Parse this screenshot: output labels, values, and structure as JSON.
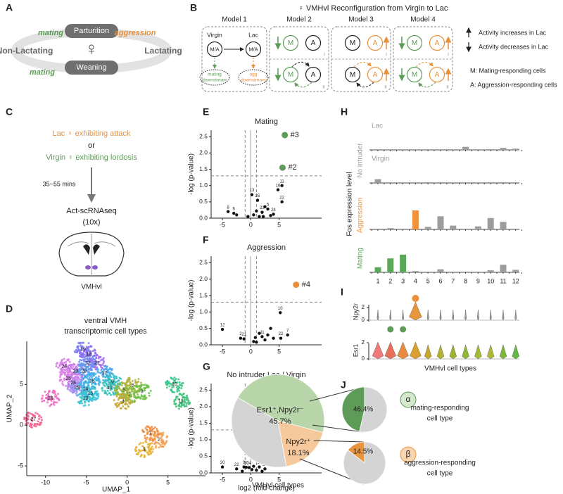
{
  "panel_letters": [
    "A",
    "B",
    "C",
    "D",
    "E",
    "F",
    "G",
    "H",
    "I",
    "J"
  ],
  "panel_a": {
    "top": "Parturition",
    "bottom": "Weaning",
    "left": "Non-Lactating",
    "right": "Lactating",
    "mating_top": "mating",
    "aggression": "aggression",
    "mating_bottom": "mating",
    "symbol": "♀"
  },
  "panel_b": {
    "title": "♀ VMHvl Reconfiguration from Virgin to Lac",
    "models": [
      "Model 1",
      "Model 2",
      "Model 3",
      "Model 4"
    ],
    "virgin": "Virgin",
    "lac": "Lac",
    "ma": "M/A",
    "mating_downstream": [
      "mating",
      "downstream"
    ],
    "agg_downstream": [
      "agg",
      "downstream"
    ],
    "m": "M",
    "a": "A",
    "sub": [
      "I",
      "II"
    ],
    "legend": [
      "Activity increases in Lac",
      "Activity decreases in Lac",
      "M: Mating-responding cells",
      "A: Aggression-responding cells"
    ]
  },
  "panel_c": {
    "line1": "Lac ♀ exhibiting attack",
    "or": "or",
    "line2": "Virgin ♀ exhibiting lordosis",
    "time": "35~55 mins",
    "method": [
      "Act-scRNAseq",
      "(10x)"
    ],
    "region": "VMHvl"
  },
  "panel_d": {
    "title": [
      "ventral VMH",
      "transcriptomic cell types"
    ],
    "xlabel": "UMAP_1",
    "ylabel": "UMAP_2",
    "xlim": [
      -12.3,
      9.6
    ],
    "xticks": [
      -10,
      -5,
      0,
      5
    ],
    "ylim": [
      -6.2,
      10.3
    ],
    "yticks": [
      -5,
      0,
      5
    ],
    "clusters": [
      {
        "label": "19",
        "x": -5.4,
        "y": 9.3,
        "color": "#7b7cf0"
      },
      {
        "label": "18",
        "x": -4.7,
        "y": 8.7,
        "color": "#8d6cf0"
      },
      {
        "label": "21",
        "x": -3.7,
        "y": 7.6,
        "color": "#a46df0"
      },
      {
        "label": "22",
        "x": -4.8,
        "y": 7.6,
        "color": "#6f8ff2"
      },
      {
        "label": "24",
        "x": -7.7,
        "y": 7.2,
        "color": "#d679e8"
      },
      {
        "label": "23",
        "x": -6.3,
        "y": 6.6,
        "color": "#c277ee"
      },
      {
        "label": "20",
        "x": -5.3,
        "y": 6.6,
        "color": "#5e9ef0"
      },
      {
        "label": "25",
        "x": -7.2,
        "y": 5.7,
        "color": "#e07ae0"
      },
      {
        "label": "17",
        "x": -2.8,
        "y": 6.4,
        "color": "#4aa8ea"
      },
      {
        "label": "16",
        "x": -4.3,
        "y": 5.4,
        "color": "#3bb0e6"
      },
      {
        "label": "28",
        "x": -6.6,
        "y": 5.2,
        "color": "#b58af0"
      },
      {
        "label": "29",
        "x": -6.1,
        "y": 4.6,
        "color": "#9c8ef0"
      },
      {
        "label": "9",
        "x": -1.8,
        "y": 5.3,
        "color": "#36bcc8"
      },
      {
        "label": "12",
        "x": -2.1,
        "y": 4.6,
        "color": "#3ac0b8"
      },
      {
        "label": "14",
        "x": -5.1,
        "y": 4.4,
        "color": "#44b4e0"
      },
      {
        "label": "15",
        "x": -4.5,
        "y": 3.9,
        "color": "#40bcd8"
      },
      {
        "label": "13",
        "x": -5.1,
        "y": 3.3,
        "color": "#3cc4d0"
      },
      {
        "label": "26",
        "x": -9.4,
        "y": 3.3,
        "color": "#f06cc4"
      },
      {
        "label": "27",
        "x": -11.5,
        "y": 0.7,
        "color": "#f0608c"
      },
      {
        "label": "5",
        "x": -0.4,
        "y": 4.3,
        "color": "#9cb83a"
      },
      {
        "label": "6",
        "x": 0.7,
        "y": 4.9,
        "color": "#b4b238"
      },
      {
        "label": "7",
        "x": 0.3,
        "y": 3.7,
        "color": "#84bc40"
      },
      {
        "label": "4",
        "x": -0.5,
        "y": 2.9,
        "color": "#c4a834"
      },
      {
        "label": "8",
        "x": 1.8,
        "y": 4.1,
        "color": "#6cc048"
      },
      {
        "label": "10",
        "x": 5.8,
        "y": 5.0,
        "color": "#3cc48a"
      },
      {
        "label": "11",
        "x": 6.6,
        "y": 3.0,
        "color": "#40c07a"
      },
      {
        "label": "1",
        "x": 2.8,
        "y": -1.0,
        "color": "#f08a3c"
      },
      {
        "label": "2",
        "x": 3.9,
        "y": -1.8,
        "color": "#f0a050"
      },
      {
        "label": "3",
        "x": 2.1,
        "y": -3.0,
        "color": "#e6b030"
      }
    ]
  },
  "panel_i": {
    "genes": [
      "Npy2r",
      "Esr1"
    ],
    "yticks": [
      0,
      2
    ],
    "xlabel": "VMHvl cell types"
  },
  "chart_data": [
    {
      "type": "scatter",
      "title": "Mating",
      "ylabel": "-log (p-value)",
      "xlim": [
        -7,
        12.5
      ],
      "xticks": [
        -5,
        0,
        5
      ],
      "ylim": [
        0,
        2.7
      ],
      "yticks": [
        {
          "value": 0,
          "label": "0.0"
        },
        0.5,
        {
          "value": 1,
          "label": "1.0"
        },
        1.5,
        {
          "value": 2,
          "label": "2.0"
        },
        2.5
      ],
      "threshold_y": 1.3,
      "threshold_x": [
        -1,
        1
      ],
      "series": [
        {
          "color": "#111111",
          "x": [
            -4,
            -3,
            -2.5,
            0.2,
            1.2,
            5.5,
            4.8,
            5.5,
            3,
            2,
            4,
            1.5,
            0.5,
            -0.5,
            2.5,
            1,
            3.5,
            2.2
          ],
          "values": [
            0.2,
            0.15,
            0.1,
            0.72,
            0.55,
            1.0,
            0.87,
            0.5,
            0.28,
            0.18,
            0.12,
            0.05,
            0.1,
            0.05,
            0.35,
            0.22,
            0.08,
            0.05
          ],
          "point_labels": [
            "8",
            "6",
            null,
            "13",
            "25",
            "11",
            "16",
            "22",
            "5",
            "23",
            "24",
            null,
            null,
            null,
            null,
            null,
            null,
            null
          ]
        },
        {
          "color": "#5e9b58",
          "x": [
            6,
            5.6
          ],
          "values": [
            2.55,
            1.55
          ],
          "point_labels": [
            "#3",
            "#2"
          ]
        }
      ]
    },
    {
      "type": "scatter",
      "title": "Aggression",
      "ylabel": "-log (p-value)",
      "xlim": [
        -7,
        12.5
      ],
      "xticks": [
        -5,
        0,
        5
      ],
      "ylim": [
        0,
        2.7
      ],
      "yticks": [
        {
          "value": 0,
          "label": "0.0"
        },
        0.5,
        {
          "value": 1,
          "label": "1.0"
        },
        1.5,
        {
          "value": 2,
          "label": "2.0"
        },
        2.5
      ],
      "threshold_y": 1.3,
      "threshold_x": [
        -1,
        1
      ],
      "series": [
        {
          "color": "#111111",
          "x": [
            -5,
            -1.8,
            -1.2,
            5.2,
            6.5,
            5.3,
            1.5,
            2,
            3,
            2.5,
            0.5,
            1,
            3.5,
            4,
            0.8
          ],
          "values": [
            0.47,
            0.2,
            0.18,
            0.98,
            0.3,
            0.2,
            0.35,
            0.25,
            0.3,
            0.15,
            0.1,
            0.08,
            0.5,
            0.2,
            0.22
          ],
          "point_labels": [
            "12",
            "2",
            "21",
            "10",
            "7",
            "22",
            null,
            "11",
            null,
            null,
            null,
            null,
            null,
            null,
            null
          ]
        },
        {
          "color": "#e8913a",
          "x": [
            8
          ],
          "values": [
            1.83
          ],
          "point_labels": [
            "#4"
          ]
        }
      ]
    },
    {
      "type": "scatter",
      "title": "No intruder Lac / Virgin",
      "ylabel": "-log (p-value)",
      "xlabel": "log2 (fold-change)",
      "xlim": [
        -7,
        12.5
      ],
      "xticks": [
        -5,
        0,
        5
      ],
      "ylim": [
        0,
        2.7
      ],
      "yticks": [
        {
          "value": 0,
          "label": "0.0"
        },
        0.5,
        {
          "value": 1,
          "label": "1.0"
        },
        1.5,
        {
          "value": 2,
          "label": "2.0"
        },
        2.5
      ],
      "threshold_y": 1.3,
      "threshold_x": [
        -1,
        1
      ],
      "series": [
        {
          "color": "#111111",
          "x": [
            -5,
            -2.5,
            0.6,
            -1.2,
            -0.8,
            -0.3,
            1.5,
            2.5,
            0.2,
            1,
            -1.5,
            2,
            0.5
          ],
          "values": [
            0.18,
            0.12,
            0.45,
            0.18,
            0.17,
            0.16,
            0.18,
            0.12,
            0.1,
            0.08,
            0.05,
            0.05,
            0.2
          ],
          "point_labels": [
            "20",
            "22",
            "29",
            "9",
            "10",
            "14",
            "11",
            "27",
            null,
            null,
            null,
            null,
            null
          ]
        }
      ]
    },
    {
      "type": "bar",
      "ylabel": "Fos expression level",
      "group_label": "No intruder",
      "ylim": [
        0,
        1
      ],
      "categories": [
        "1",
        "2",
        "3",
        "4",
        "5",
        "6",
        "7",
        "8",
        "9",
        "10",
        "11",
        "12"
      ],
      "series": [
        {
          "name": "Lac",
          "label_color": "#9d9d9d",
          "colors": [
            "#9d9d9d",
            "#9d9d9d",
            "#9d9d9d",
            "#9d9d9d",
            "#9d9d9d",
            "#9d9d9d",
            "#9d9d9d",
            "#9d9d9d",
            "#9d9d9d",
            "#9d9d9d",
            "#9d9d9d",
            "#9d9d9d"
          ],
          "values": [
            0,
            0,
            0,
            0,
            0,
            0,
            0,
            0.12,
            0,
            0.03,
            0.08,
            0.05
          ]
        },
        {
          "name": "Virgin",
          "label_color": "#9d9d9d",
          "colors": [
            "#9d9d9d",
            "#9d9d9d",
            "#9d9d9d",
            "#9d9d9d",
            "#9d9d9d",
            "#9d9d9d",
            "#9d9d9d",
            "#9d9d9d",
            "#9d9d9d",
            "#9d9d9d",
            "#9d9d9d",
            "#9d9d9d"
          ],
          "values": [
            0.15,
            0,
            0,
            0,
            0.03,
            0.03,
            0,
            0,
            0,
            0.03,
            0.03,
            0
          ]
        },
        {
          "name": "Aggression",
          "label_color": "#f0923a",
          "colors": [
            "#9d9d9d",
            "#9d9d9d",
            "#9d9d9d",
            "#f0923a",
            "#9d9d9d",
            "#9d9d9d",
            "#9d9d9d",
            "#9d9d9d",
            "#9d9d9d",
            "#9d9d9d",
            "#9d9d9d",
            "#9d9d9d"
          ],
          "values": [
            0,
            0.05,
            0,
            0.75,
            0.1,
            0.52,
            0.15,
            0,
            0.12,
            0.45,
            0.3,
            0
          ]
        },
        {
          "name": "Mating",
          "label_color": "#5ba85a",
          "colors": [
            "#5ba85a",
            "#5ba85a",
            "#5ba85a",
            "#9d9d9d",
            "#9d9d9d",
            "#9d9d9d",
            "#9d9d9d",
            "#9d9d9d",
            "#9d9d9d",
            "#9d9d9d",
            "#9d9d9d",
            "#9d9d9d"
          ],
          "values": [
            0.2,
            0.55,
            0.7,
            0.05,
            0,
            0.12,
            0,
            0,
            0,
            0.08,
            0.3,
            0.1
          ]
        }
      ]
    },
    {
      "type": "pie",
      "names": [
        "Esr1⁺,Npy2r⁻",
        "Npy2r⁺",
        null
      ],
      "values": [
        45.7,
        18.1,
        36.2
      ],
      "value_labels": [
        "45.7%",
        "18.1%",
        null
      ],
      "colors": [
        "#b9d5aa",
        "#f6c99c",
        "#d4d4d4"
      ],
      "caption": "VMHvl cell types"
    },
    {
      "type": "pie",
      "values": [
        46.4,
        53.6
      ],
      "value_labels": [
        "46.4%",
        null
      ],
      "colors": [
        "#5e9b58",
        "#d4d4d4"
      ],
      "legend": {
        "symbol": "α",
        "text": [
          "mating-responding",
          "cell type"
        ]
      }
    },
    {
      "type": "pie",
      "values": [
        14.5,
        85.5
      ],
      "value_labels": [
        "14.5%",
        null
      ],
      "colors": [
        "#e8953f",
        "#d4d4d4"
      ],
      "legend": {
        "symbol": "β",
        "text": [
          "aggression-responding",
          "cell type"
        ]
      }
    }
  ]
}
